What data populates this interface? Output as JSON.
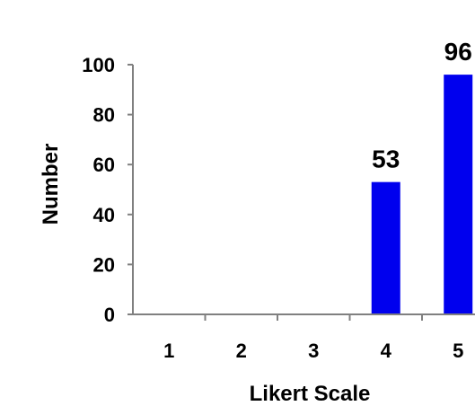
{
  "chart_data": {
    "type": "bar",
    "categories": [
      "1",
      "2",
      "3",
      "4",
      "5"
    ],
    "values": [
      0,
      0,
      0,
      53,
      96
    ],
    "data_labels": [
      "",
      "",
      "",
      "53",
      "96"
    ],
    "xlabel": "Likert Scale",
    "ylabel": "Number",
    "ylim": [
      0,
      100
    ],
    "yticks": [
      "0",
      "20",
      "40",
      "60",
      "80",
      "100"
    ],
    "grid": false,
    "bar_color": "#0000ee"
  }
}
